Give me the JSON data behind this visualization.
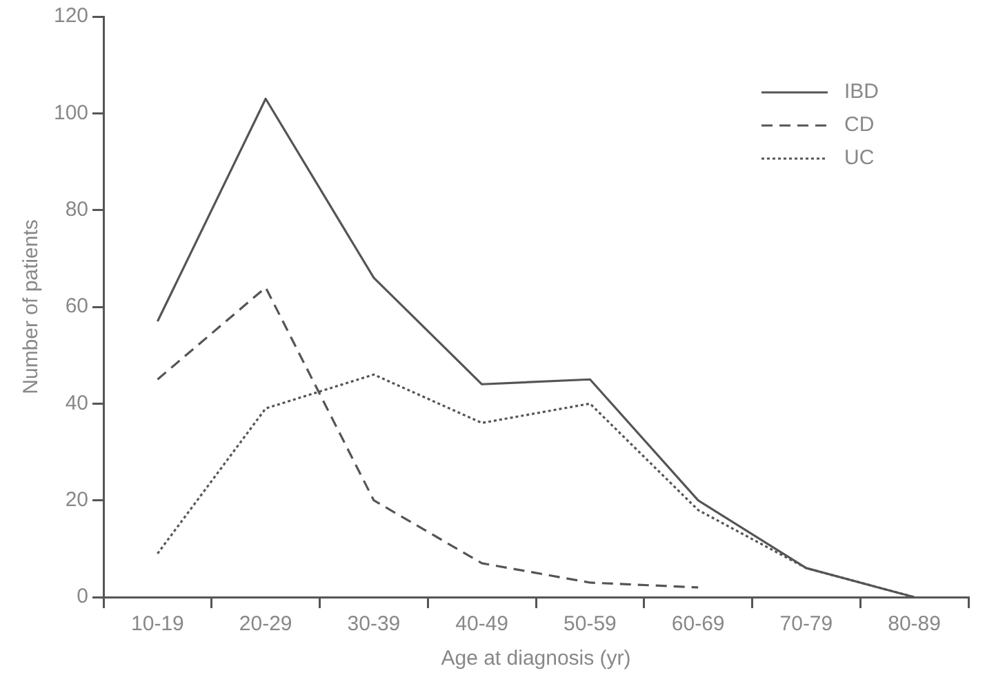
{
  "chart_data": {
    "type": "line",
    "xlabel": "Age at diagnosis (yr)",
    "ylabel": "Number of patients",
    "categories": [
      "10-19",
      "20-29",
      "30-39",
      "40-49",
      "50-59",
      "60-69",
      "70-79",
      "80-89"
    ],
    "series": [
      {
        "name": "IBD",
        "color": "#555555",
        "line_style": "solid",
        "values": [
          57,
          103,
          66,
          44,
          45,
          20,
          6,
          0
        ]
      },
      {
        "name": "CD",
        "color": "#555555",
        "line_style": "dashed",
        "values": [
          45,
          64,
          20,
          7,
          3,
          2,
          null,
          null
        ]
      },
      {
        "name": "UC",
        "color": "#555555",
        "line_style": "dotted",
        "values": [
          9,
          39,
          46,
          36,
          40,
          18,
          6,
          0
        ]
      }
    ],
    "ylim": [
      0,
      120
    ],
    "yticks": [
      0,
      20,
      40,
      60,
      80,
      100,
      120
    ],
    "grid": false,
    "legend": "top right",
    "marker": "none"
  }
}
